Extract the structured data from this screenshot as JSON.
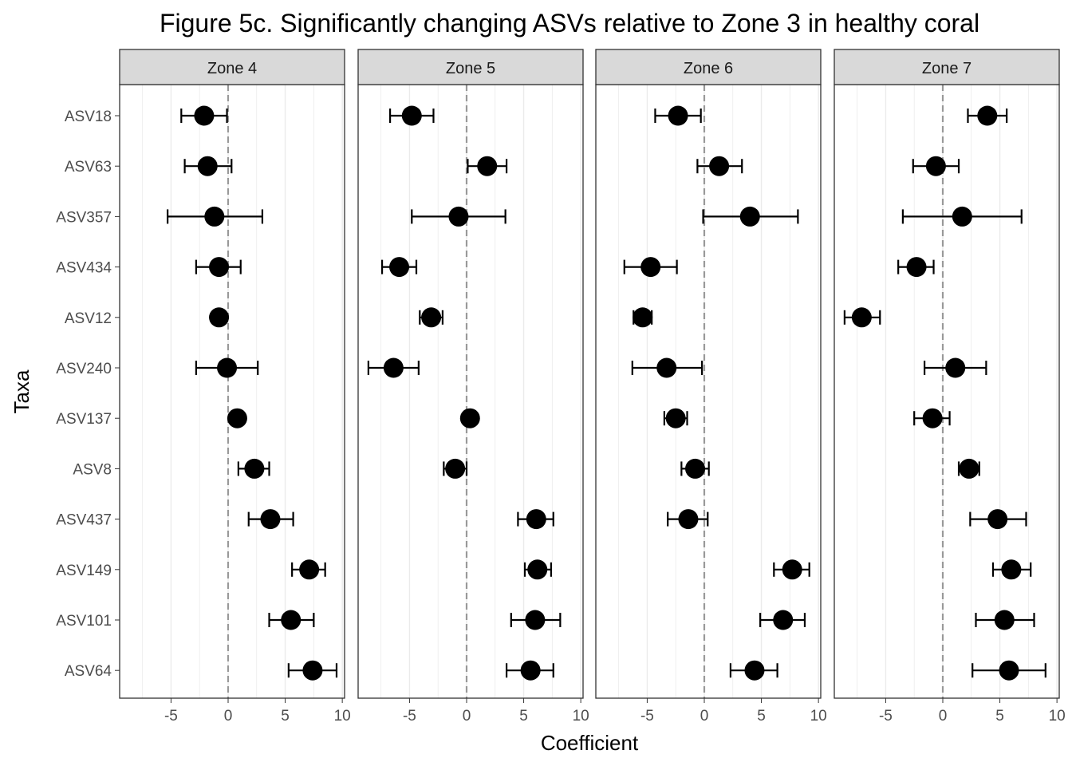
{
  "chart_data": {
    "type": "scatter",
    "title": "Figure 5c. Significantly changing ASVs relative to Zone 3 in healthy coral",
    "xlabel": "Coefficient",
    "ylabel": "Taxa",
    "xlim": [
      -9.5,
      10.2
    ],
    "x_ticks": [
      -5,
      0,
      5,
      10
    ],
    "x_tick_labels": [
      "-5",
      "0",
      "5",
      "10"
    ],
    "reference_line": 0,
    "taxa": [
      "ASV18",
      "ASV63",
      "ASV357",
      "ASV434",
      "ASV12",
      "ASV240",
      "ASV137",
      "ASV8",
      "ASV437",
      "ASV149",
      "ASV101",
      "ASV64"
    ],
    "colors": {
      "point": "#000000",
      "strip": "#d9d9d9",
      "grid": "#ebebeb",
      "refline": "#999999"
    },
    "panels": [
      {
        "name": "Zone 4",
        "points": [
          {
            "taxon": "ASV18",
            "estimate": -2.1,
            "lower": -4.1,
            "upper": -0.1
          },
          {
            "taxon": "ASV63",
            "estimate": -1.8,
            "lower": -3.8,
            "upper": 0.3
          },
          {
            "taxon": "ASV357",
            "estimate": -1.2,
            "lower": -5.3,
            "upper": 3.0
          },
          {
            "taxon": "ASV434",
            "estimate": -0.8,
            "lower": -2.8,
            "upper": 1.1
          },
          {
            "taxon": "ASV12",
            "estimate": -0.8,
            "lower": -0.8,
            "upper": -0.8
          },
          {
            "taxon": "ASV240",
            "estimate": -0.1,
            "lower": -2.8,
            "upper": 2.6
          },
          {
            "taxon": "ASV137",
            "estimate": 0.8,
            "lower": 0.8,
            "upper": 0.8
          },
          {
            "taxon": "ASV8",
            "estimate": 2.3,
            "lower": 0.9,
            "upper": 3.6
          },
          {
            "taxon": "ASV437",
            "estimate": 3.7,
            "lower": 1.8,
            "upper": 5.7
          },
          {
            "taxon": "ASV149",
            "estimate": 7.1,
            "lower": 5.6,
            "upper": 8.5
          },
          {
            "taxon": "ASV101",
            "estimate": 5.5,
            "lower": 3.6,
            "upper": 7.5
          },
          {
            "taxon": "ASV64",
            "estimate": 7.4,
            "lower": 5.3,
            "upper": 9.5
          }
        ]
      },
      {
        "name": "Zone 5",
        "points": [
          {
            "taxon": "ASV18",
            "estimate": -4.8,
            "lower": -6.7,
            "upper": -2.9
          },
          {
            "taxon": "ASV63",
            "estimate": 1.8,
            "lower": 0.1,
            "upper": 3.5
          },
          {
            "taxon": "ASV357",
            "estimate": -0.7,
            "lower": -4.8,
            "upper": 3.4
          },
          {
            "taxon": "ASV434",
            "estimate": -5.9,
            "lower": -7.4,
            "upper": -4.4
          },
          {
            "taxon": "ASV12",
            "estimate": -3.1,
            "lower": -4.1,
            "upper": -2.1
          },
          {
            "taxon": "ASV240",
            "estimate": -6.4,
            "lower": -8.6,
            "upper": -4.2
          },
          {
            "taxon": "ASV137",
            "estimate": 0.3,
            "lower": 0.3,
            "upper": 0.3
          },
          {
            "taxon": "ASV8",
            "estimate": -1.0,
            "lower": -2.0,
            "upper": 0.0
          },
          {
            "taxon": "ASV437",
            "estimate": 6.1,
            "lower": 4.5,
            "upper": 7.6
          },
          {
            "taxon": "ASV149",
            "estimate": 6.2,
            "lower": 5.1,
            "upper": 7.4
          },
          {
            "taxon": "ASV101",
            "estimate": 6.0,
            "lower": 3.9,
            "upper": 8.2
          },
          {
            "taxon": "ASV64",
            "estimate": 5.6,
            "lower": 3.5,
            "upper": 7.6
          }
        ]
      },
      {
        "name": "Zone 6",
        "points": [
          {
            "taxon": "ASV18",
            "estimate": -2.3,
            "lower": -4.3,
            "upper": -0.3
          },
          {
            "taxon": "ASV63",
            "estimate": 1.3,
            "lower": -0.6,
            "upper": 3.3
          },
          {
            "taxon": "ASV357",
            "estimate": 4.0,
            "lower": -0.1,
            "upper": 8.2
          },
          {
            "taxon": "ASV434",
            "estimate": -4.7,
            "lower": -7.0,
            "upper": -2.4
          },
          {
            "taxon": "ASV12",
            "estimate": -5.4,
            "lower": -6.2,
            "upper": -4.6
          },
          {
            "taxon": "ASV240",
            "estimate": -3.3,
            "lower": -6.3,
            "upper": -0.2
          },
          {
            "taxon": "ASV137",
            "estimate": -2.5,
            "lower": -3.5,
            "upper": -1.5
          },
          {
            "taxon": "ASV8",
            "estimate": -0.8,
            "lower": -2.0,
            "upper": 0.4
          },
          {
            "taxon": "ASV437",
            "estimate": -1.4,
            "lower": -3.2,
            "upper": 0.3
          },
          {
            "taxon": "ASV149",
            "estimate": 7.7,
            "lower": 6.1,
            "upper": 9.2
          },
          {
            "taxon": "ASV101",
            "estimate": 6.9,
            "lower": 4.9,
            "upper": 8.8
          },
          {
            "taxon": "ASV64",
            "estimate": 4.4,
            "lower": 2.3,
            "upper": 6.4
          }
        ]
      },
      {
        "name": "Zone 7",
        "points": [
          {
            "taxon": "ASV18",
            "estimate": 3.9,
            "lower": 2.2,
            "upper": 5.6
          },
          {
            "taxon": "ASV63",
            "estimate": -0.6,
            "lower": -2.6,
            "upper": 1.4
          },
          {
            "taxon": "ASV357",
            "estimate": 1.7,
            "lower": -3.5,
            "upper": 6.9
          },
          {
            "taxon": "ASV434",
            "estimate": -2.3,
            "lower": -3.9,
            "upper": -0.8
          },
          {
            "taxon": "ASV12",
            "estimate": -7.1,
            "lower": -8.6,
            "upper": -5.5
          },
          {
            "taxon": "ASV240",
            "estimate": 1.1,
            "lower": -1.6,
            "upper": 3.8
          },
          {
            "taxon": "ASV137",
            "estimate": -0.9,
            "lower": -2.5,
            "upper": 0.6
          },
          {
            "taxon": "ASV8",
            "estimate": 2.3,
            "lower": 1.4,
            "upper": 3.2
          },
          {
            "taxon": "ASV437",
            "estimate": 4.8,
            "lower": 2.4,
            "upper": 7.3
          },
          {
            "taxon": "ASV149",
            "estimate": 6.0,
            "lower": 4.4,
            "upper": 7.7
          },
          {
            "taxon": "ASV101",
            "estimate": 5.4,
            "lower": 2.9,
            "upper": 8.0
          },
          {
            "taxon": "ASV64",
            "estimate": 5.8,
            "lower": 2.6,
            "upper": 9.0
          }
        ]
      }
    ]
  }
}
